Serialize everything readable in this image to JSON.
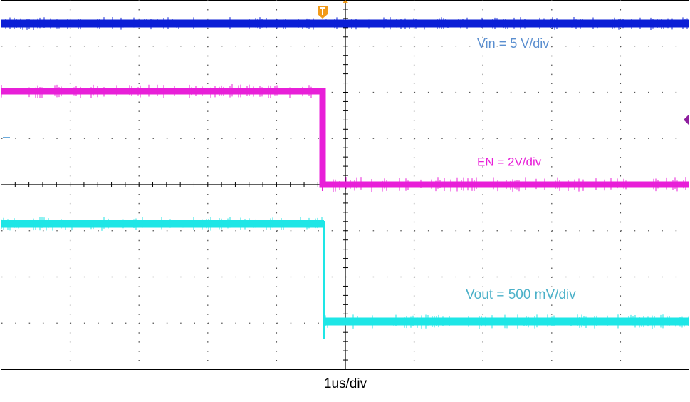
{
  "trace_labels": {
    "vin": "Vin = 5 V/div",
    "en": "EN = 2V/div",
    "vout": "Vout = 500 mV/div"
  },
  "timebase": "1us/div"
}
